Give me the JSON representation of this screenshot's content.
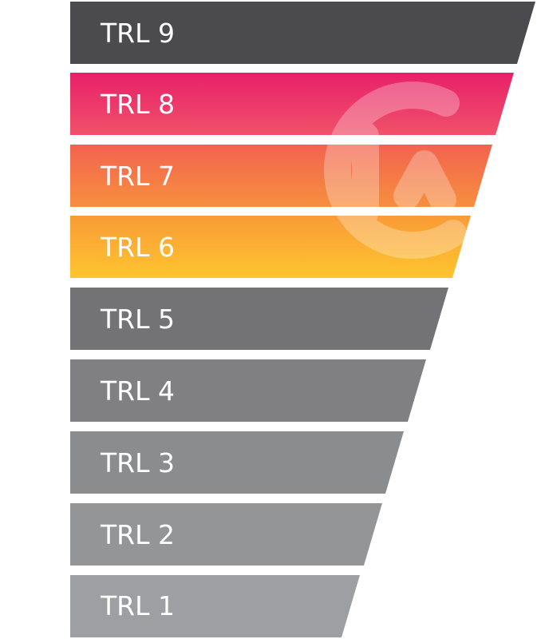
{
  "levels": [
    {
      "label": "TRL 9",
      "fill": "#4b4b4d"
    },
    {
      "label": "TRL 8",
      "gradient": [
        "#e8206a",
        "#f0516a"
      ]
    },
    {
      "label": "TRL 7",
      "gradient": [
        "#f2634f",
        "#f78f3e"
      ]
    },
    {
      "label": "TRL 6",
      "gradient": [
        "#f99b37",
        "#fec52e"
      ]
    },
    {
      "label": "TRL 5",
      "fill": "#737375"
    },
    {
      "label": "TRL 4",
      "fill": "#808082"
    },
    {
      "label": "TRL 3",
      "fill": "#8b8c8e"
    },
    {
      "label": "TRL 2",
      "fill": "#949597"
    },
    {
      "label": "TRL 1",
      "fill": "#9e9fa2"
    }
  ],
  "watermark": {
    "icon": "logo-watermark-icon",
    "color": "#ffffff"
  }
}
